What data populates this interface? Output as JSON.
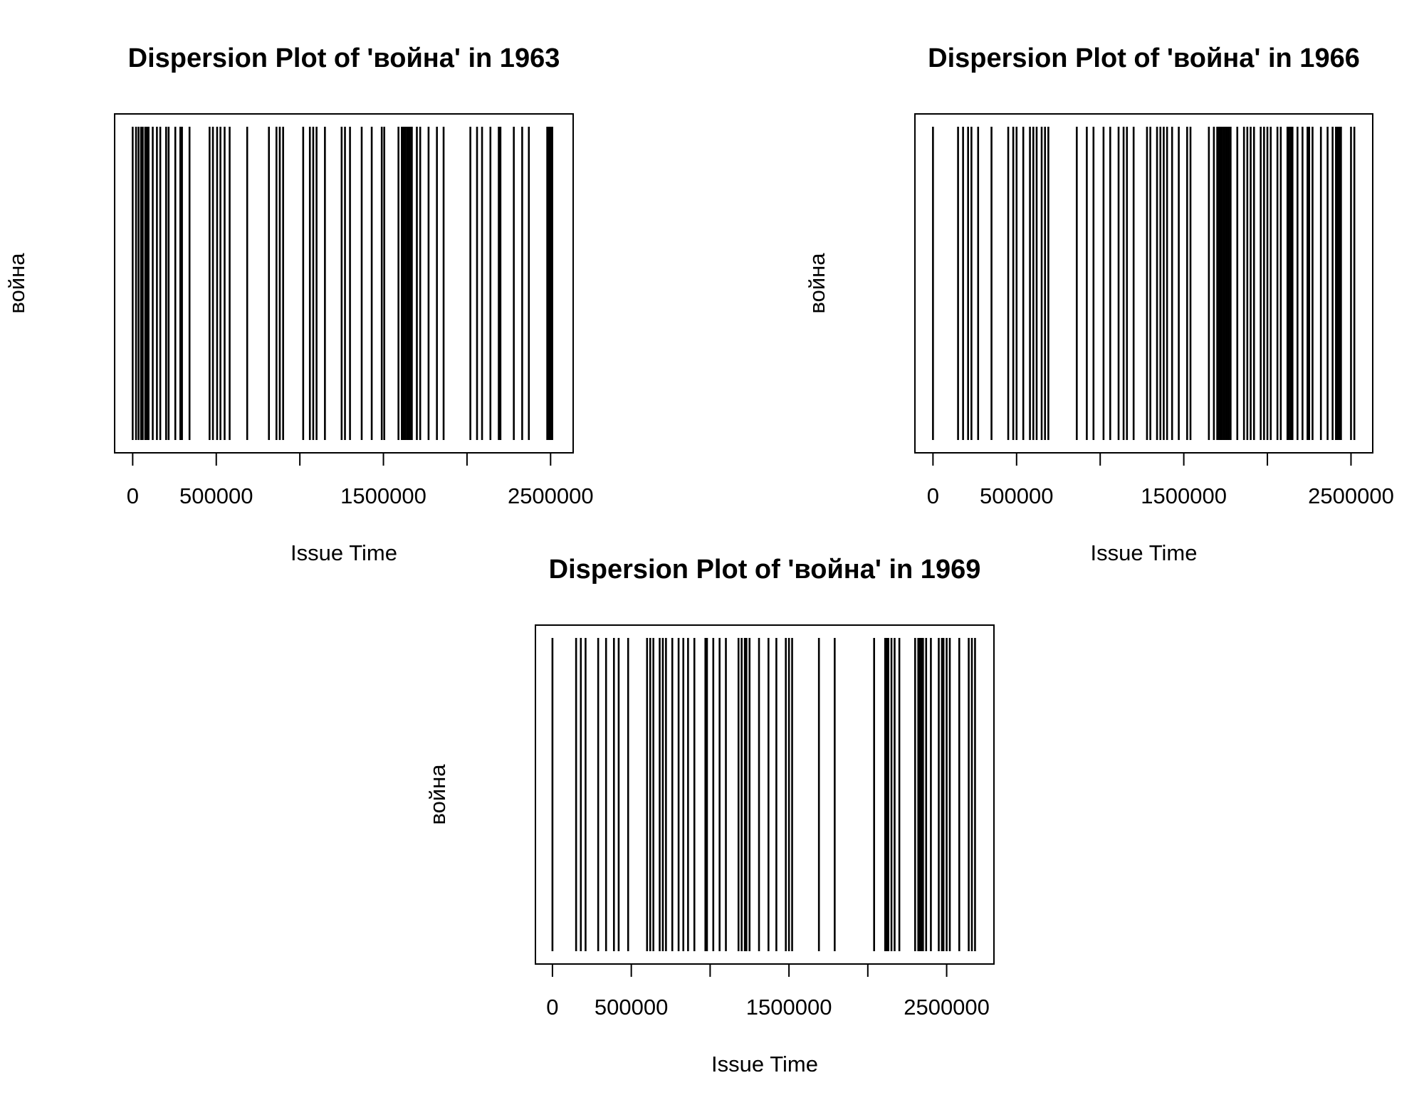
{
  "chart_data": [
    {
      "type": "dispersion",
      "title": "Dispersion Plot of 'война' in 1963",
      "xlabel": "Issue Time",
      "ylabel": "война",
      "xlim": [
        -108000,
        2635000
      ],
      "xticks": [
        0,
        500000,
        1000000,
        1500000,
        2000000,
        2500000
      ],
      "xtick_labels": [
        "0",
        "500000",
        "",
        "1500000",
        "",
        "2500000"
      ],
      "occurrences": [
        0,
        20000,
        35000,
        50000,
        60000,
        75000,
        85000,
        95000,
        120000,
        145000,
        165000,
        200000,
        215000,
        255000,
        285000,
        295000,
        340000,
        460000,
        480000,
        505000,
        525000,
        550000,
        580000,
        685000,
        815000,
        860000,
        880000,
        900000,
        1020000,
        1060000,
        1080000,
        1100000,
        1150000,
        1250000,
        1270000,
        1300000,
        1370000,
        1430000,
        1490000,
        1505000,
        1590000,
        1610000,
        1620000,
        1630000,
        1640000,
        1650000,
        1660000,
        1670000,
        1700000,
        1720000,
        1770000,
        1820000,
        1860000,
        2020000,
        2060000,
        2090000,
        2140000,
        2190000,
        2200000,
        2280000,
        2330000,
        2370000,
        2480000,
        2490000,
        2500000,
        2510000
      ]
    },
    {
      "type": "dispersion",
      "title": "Dispersion Plot of 'война' in 1966",
      "xlabel": "Issue Time",
      "ylabel": "война",
      "xlim": [
        -108000,
        2630000
      ],
      "xticks": [
        0,
        500000,
        1000000,
        1500000,
        2000000,
        2500000
      ],
      "xtick_labels": [
        "0",
        "500000",
        "",
        "1500000",
        "",
        "2500000"
      ],
      "occurrences": [
        0,
        150000,
        180000,
        210000,
        230000,
        270000,
        350000,
        450000,
        480000,
        500000,
        540000,
        580000,
        600000,
        620000,
        650000,
        670000,
        690000,
        860000,
        920000,
        960000,
        1020000,
        1060000,
        1110000,
        1140000,
        1160000,
        1200000,
        1280000,
        1300000,
        1340000,
        1360000,
        1380000,
        1400000,
        1430000,
        1470000,
        1520000,
        1540000,
        1650000,
        1680000,
        1700000,
        1710000,
        1720000,
        1730000,
        1740000,
        1750000,
        1760000,
        1770000,
        1780000,
        1820000,
        1860000,
        1880000,
        1900000,
        1920000,
        1960000,
        1980000,
        2000000,
        2020000,
        2060000,
        2080000,
        2120000,
        2130000,
        2140000,
        2150000,
        2180000,
        2210000,
        2240000,
        2250000,
        2270000,
        2320000,
        2360000,
        2390000,
        2410000,
        2420000,
        2430000,
        2440000,
        2500000,
        2520000
      ]
    },
    {
      "type": "dispersion",
      "title": "Dispersion Plot of 'война' in 1969",
      "xlabel": "Issue Time",
      "ylabel": "война",
      "xlim": [
        -108000,
        2800000
      ],
      "xticks": [
        0,
        500000,
        1000000,
        1500000,
        2000000,
        2500000
      ],
      "xtick_labels": [
        "0",
        "500000",
        "",
        "1500000",
        "",
        "2500000"
      ],
      "occurrences": [
        0,
        150000,
        180000,
        210000,
        290000,
        340000,
        390000,
        420000,
        480000,
        600000,
        620000,
        640000,
        680000,
        700000,
        720000,
        760000,
        800000,
        830000,
        860000,
        900000,
        970000,
        980000,
        1020000,
        1060000,
        1100000,
        1180000,
        1200000,
        1220000,
        1230000,
        1250000,
        1310000,
        1370000,
        1420000,
        1480000,
        1500000,
        1520000,
        1690000,
        1790000,
        2040000,
        2110000,
        2120000,
        2130000,
        2150000,
        2170000,
        2200000,
        2300000,
        2320000,
        2330000,
        2340000,
        2350000,
        2370000,
        2400000,
        2450000,
        2470000,
        2480000,
        2500000,
        2520000,
        2580000,
        2640000,
        2660000,
        2680000
      ]
    }
  ]
}
